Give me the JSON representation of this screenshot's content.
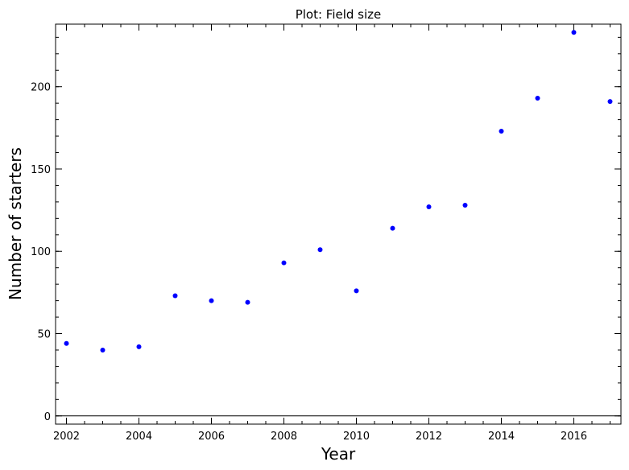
{
  "chart_data": {
    "type": "scatter",
    "title": "Plot: Field size",
    "xlabel": "Year",
    "ylabel": "Number of starters",
    "x": [
      2002,
      2003,
      2004,
      2005,
      2006,
      2007,
      2008,
      2009,
      2010,
      2011,
      2012,
      2013,
      2014,
      2015,
      2016,
      2017
    ],
    "y": [
      44,
      40,
      42,
      73,
      70,
      69,
      93,
      101,
      76,
      114,
      127,
      128,
      173,
      193,
      233,
      191
    ],
    "xlim": [
      2001.7,
      2017.3
    ],
    "ylim": [
      -5,
      238
    ],
    "x_ticks": [
      2002,
      2004,
      2006,
      2008,
      2010,
      2012,
      2014,
      2016
    ],
    "x_tick_labels": [
      "2002",
      "2004",
      "2006",
      "2008",
      "2010",
      "2012",
      "2014",
      "2016"
    ],
    "y_ticks": [
      0,
      50,
      100,
      150,
      200
    ],
    "y_tick_labels": [
      "0",
      "50",
      "100",
      "150",
      "200"
    ],
    "grid": false,
    "zero_line": true,
    "point_color": "#0000ff",
    "axes_color": "#000000"
  }
}
